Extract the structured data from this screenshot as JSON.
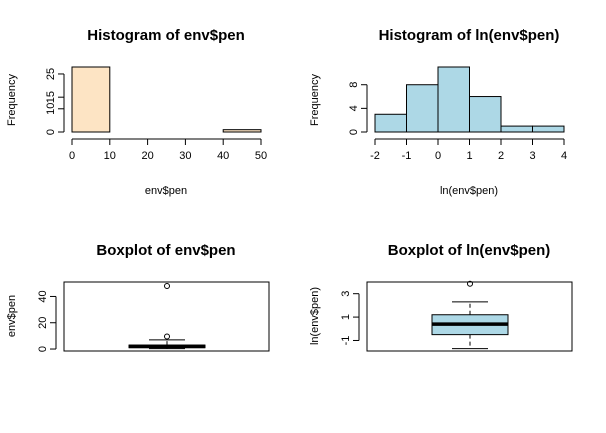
{
  "chart_data": [
    {
      "type": "histogram",
      "title": "Histogram of env$pen",
      "xlabel": "env$pen",
      "ylabel": "Frequency",
      "bins": [
        [
          0,
          10
        ],
        [
          10,
          20
        ],
        [
          20,
          30
        ],
        [
          30,
          40
        ],
        [
          40,
          50
        ]
      ],
      "counts": [
        28,
        0,
        0,
        0,
        1
      ],
      "fill": "#fde4c4",
      "xlim": [
        0,
        50
      ],
      "ylim": [
        0,
        28
      ],
      "xticks": [
        "0",
        "10",
        "20",
        "30",
        "40",
        "50"
      ],
      "yticks": [
        "0",
        "10",
        "15",
        "25"
      ]
    },
    {
      "type": "histogram",
      "title": "Histogram of ln(env$pen)",
      "xlabel": "ln(env$pen)",
      "ylabel": "Frequency",
      "bins": [
        [
          -2,
          -1
        ],
        [
          -1,
          0
        ],
        [
          0,
          1
        ],
        [
          1,
          2
        ],
        [
          2,
          3
        ],
        [
          3,
          4
        ]
      ],
      "counts": [
        3,
        8,
        11,
        6,
        1,
        1
      ],
      "fill": "#add8e6",
      "xlim": [
        -2,
        4
      ],
      "ylim": [
        0,
        11
      ],
      "xticks": [
        "-2",
        "-1",
        "0",
        "1",
        "2",
        "3",
        "4"
      ],
      "yticks": [
        "0",
        "4",
        "8"
      ]
    },
    {
      "type": "boxplot",
      "title": "Boxplot of env$pen",
      "ylabel": "env$pen",
      "fill": "#ffffff",
      "stats": {
        "whisker_low": 0.3,
        "q1": 1.0,
        "median": 2.0,
        "q3": 3.0,
        "whisker_high": 7.0
      },
      "outliers": [
        9.5,
        48
      ],
      "ylim": [
        -1.5,
        51
      ],
      "yticks": [
        "0",
        "20",
        "40"
      ]
    },
    {
      "type": "boxplot",
      "title": "Boxplot of ln(env$pen)",
      "ylabel": "ln(env$pen)",
      "fill": "#add8e6",
      "stats": {
        "whisker_low": -1.7,
        "q1": -0.5,
        "median": 0.4,
        "q3": 1.2,
        "whisker_high": 2.3
      },
      "outliers": [
        3.85
      ],
      "ylim": [
        -1.9,
        4.0
      ],
      "yticks": [
        "-1",
        "1",
        "3"
      ]
    }
  ]
}
